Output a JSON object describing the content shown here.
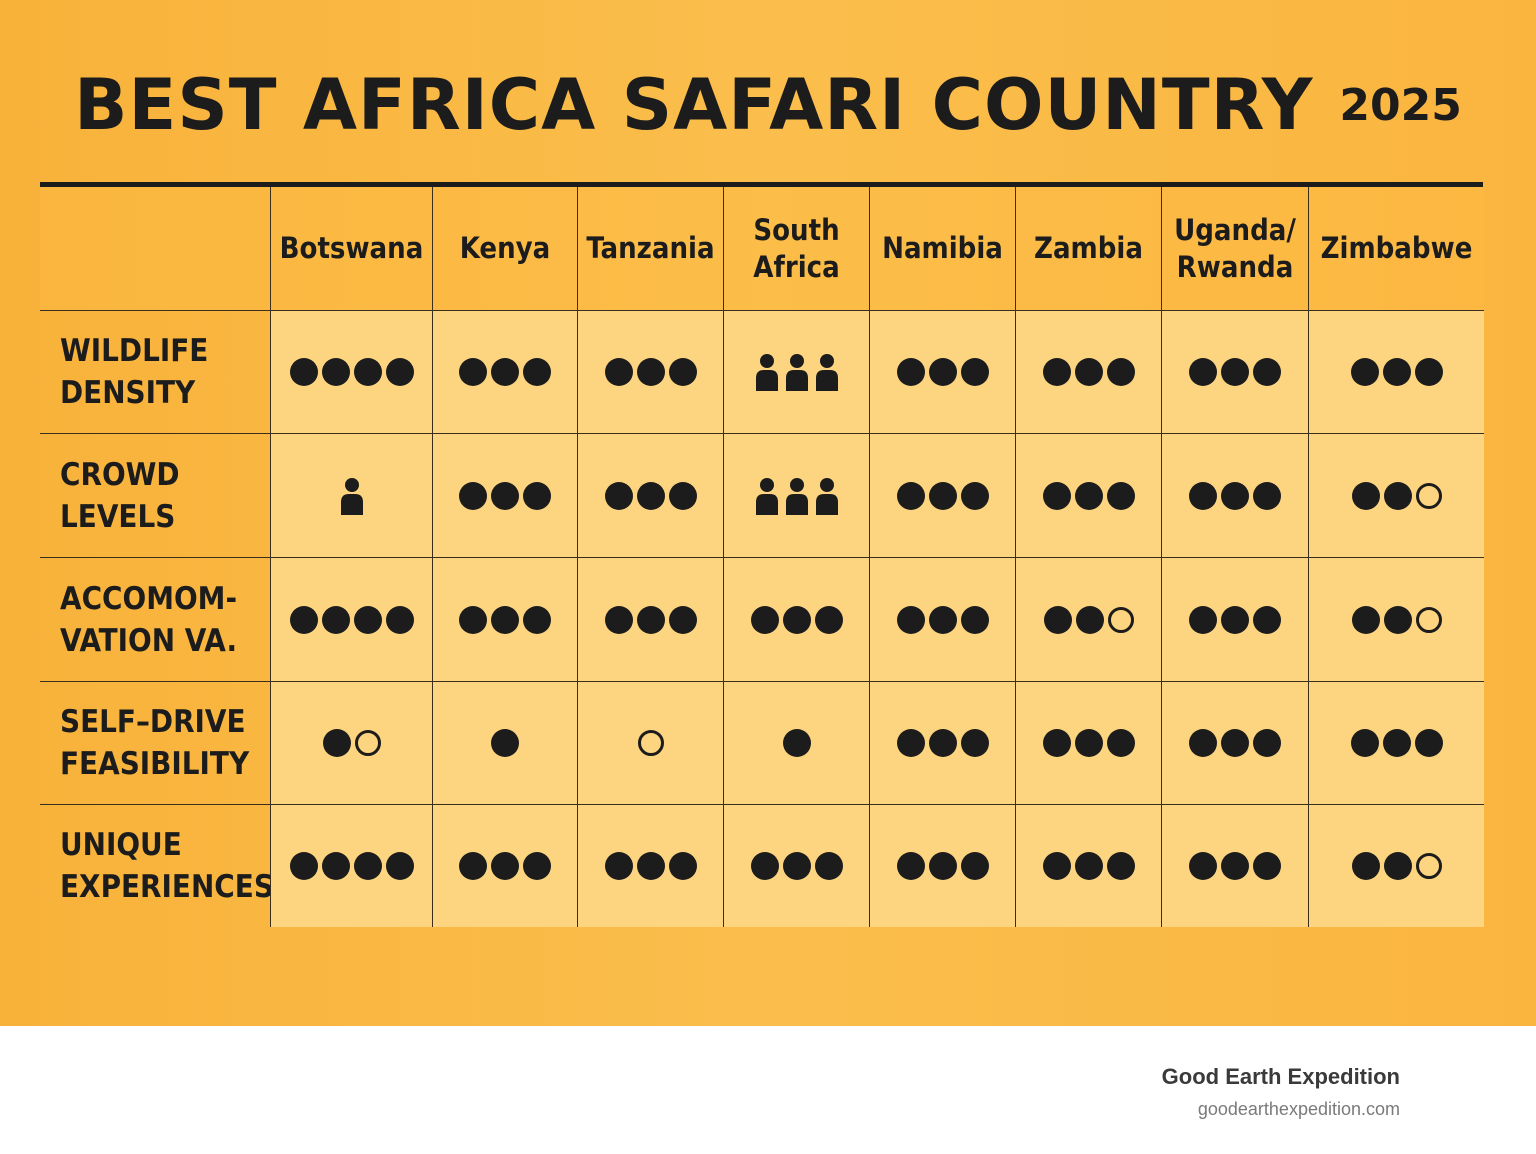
{
  "title": "BEST AFRICA SAFARI COUNTRY",
  "year": "2025",
  "footer": {
    "brand": "Good Earth Expedition",
    "url": "goodearthexpedition.com"
  },
  "chart_data": {
    "type": "table",
    "columns": [
      "Botswana",
      "Kenya",
      "Tanzania",
      "South\nAfrica",
      "Namibia",
      "Zambia",
      "Uganda/\nRwanda",
      "Zimbabwe"
    ],
    "rows": [
      {
        "label": "WILDLIFE\nDENSITY",
        "cells": [
          {
            "type": "dots",
            "filled": 4,
            "empty": 0
          },
          {
            "type": "dots",
            "filled": 3,
            "empty": 0
          },
          {
            "type": "dots",
            "filled": 3,
            "empty": 0
          },
          {
            "type": "people",
            "count": 3
          },
          {
            "type": "dots",
            "filled": 3,
            "empty": 0
          },
          {
            "type": "dots",
            "filled": 3,
            "empty": 0
          },
          {
            "type": "dots",
            "filled": 3,
            "empty": 0
          },
          {
            "type": "dots",
            "filled": 3,
            "empty": 0
          }
        ]
      },
      {
        "label": "CROWD\nLEVELS",
        "cells": [
          {
            "type": "people",
            "count": 1
          },
          {
            "type": "dots",
            "filled": 3,
            "empty": 0
          },
          {
            "type": "dots",
            "filled": 3,
            "empty": 0
          },
          {
            "type": "people",
            "count": 3
          },
          {
            "type": "dots",
            "filled": 3,
            "empty": 0
          },
          {
            "type": "dots",
            "filled": 3,
            "empty": 0
          },
          {
            "type": "dots",
            "filled": 3,
            "empty": 0
          },
          {
            "type": "dots",
            "filled": 2,
            "empty": 1
          }
        ]
      },
      {
        "label": "ACCOMOM-\nVATION VA.",
        "cells": [
          {
            "type": "dots",
            "filled": 4,
            "empty": 0
          },
          {
            "type": "dots",
            "filled": 3,
            "empty": 0
          },
          {
            "type": "dots",
            "filled": 3,
            "empty": 0
          },
          {
            "type": "dots",
            "filled": 3,
            "empty": 0
          },
          {
            "type": "dots",
            "filled": 3,
            "empty": 0
          },
          {
            "type": "dots",
            "filled": 2,
            "empty": 1
          },
          {
            "type": "dots",
            "filled": 3,
            "empty": 0
          },
          {
            "type": "dots",
            "filled": 2,
            "empty": 1
          }
        ]
      },
      {
        "label": "SELF–DRIVE\nFEASIBILITY",
        "cells": [
          {
            "type": "dots",
            "filled": 1,
            "empty": 1
          },
          {
            "type": "dots",
            "filled": 1,
            "empty": 0
          },
          {
            "type": "dots",
            "filled": 0,
            "empty": 1
          },
          {
            "type": "dots",
            "filled": 1,
            "empty": 0
          },
          {
            "type": "dots",
            "filled": 3,
            "empty": 0
          },
          {
            "type": "dots",
            "filled": 3,
            "empty": 0
          },
          {
            "type": "dots",
            "filled": 3,
            "empty": 0
          },
          {
            "type": "dots",
            "filled": 3,
            "empty": 0
          }
        ]
      },
      {
        "label": "UNIQUE\nEXPERIENCES",
        "cells": [
          {
            "type": "dots",
            "filled": 4,
            "empty": 0
          },
          {
            "type": "dots",
            "filled": 3,
            "empty": 0
          },
          {
            "type": "dots",
            "filled": 3,
            "empty": 0
          },
          {
            "type": "dots",
            "filled": 3,
            "empty": 0
          },
          {
            "type": "dots",
            "filled": 3,
            "empty": 0
          },
          {
            "type": "dots",
            "filled": 3,
            "empty": 0
          },
          {
            "type": "dots",
            "filled": 3,
            "empty": 0
          },
          {
            "type": "dots",
            "filled": 2,
            "empty": 1
          }
        ]
      }
    ]
  }
}
